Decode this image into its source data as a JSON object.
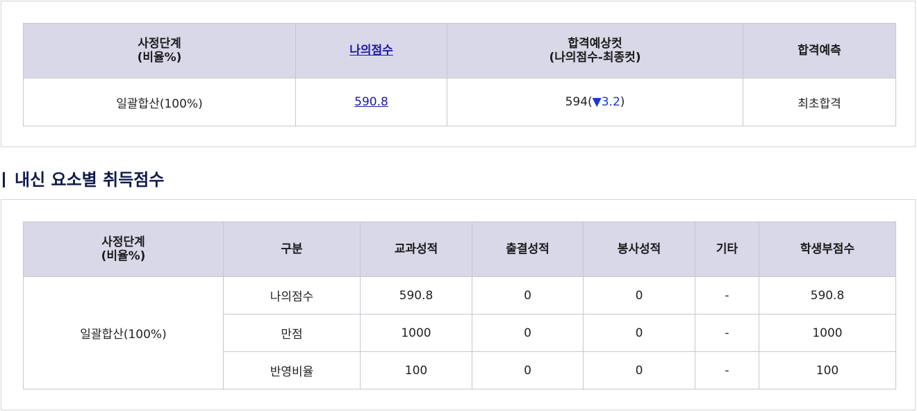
{
  "result_table": {
    "headers": {
      "stage_line1": "사정단계",
      "stage_line2": "(비율%)",
      "my_score": "나의점수",
      "cut_line1": "합격예상컷",
      "cut_line2": "(나의점수-최종컷)",
      "prediction": "합격예측"
    },
    "row": {
      "stage": "일괄합산(100%)",
      "my_score": "590.8",
      "cut_value": "594(",
      "cut_arrow": "▼",
      "cut_diff": "3.2",
      "cut_close": ")",
      "prediction": "최초합격"
    }
  },
  "section2": {
    "title": "내신 요소별 취득점수"
  },
  "element_table": {
    "headers": {
      "stage_line1": "사정단계",
      "stage_line2": "(비율%)",
      "category": "구분",
      "subject": "교과성적",
      "attendance": "출결성적",
      "volunteer": "봉사성적",
      "etc": "기타",
      "record_score": "학생부점수"
    },
    "stage": "일괄합산(100%)",
    "rows": [
      {
        "category": "나의점수",
        "subject": "590.8",
        "attendance": "0",
        "volunteer": "0",
        "etc": "-",
        "record_score": "590.8"
      },
      {
        "category": "만점",
        "subject": "1000",
        "attendance": "0",
        "volunteer": "0",
        "etc": "-",
        "record_score": "1000"
      },
      {
        "category": "반영비율",
        "subject": "100",
        "attendance": "0",
        "volunteer": "0",
        "etc": "-",
        "record_score": "100"
      }
    ]
  },
  "colors": {
    "header_bg": "#d9d8e8",
    "link": "#1a1aa8",
    "down_arrow": "#1736d9",
    "title": "#0f1b4c"
  }
}
